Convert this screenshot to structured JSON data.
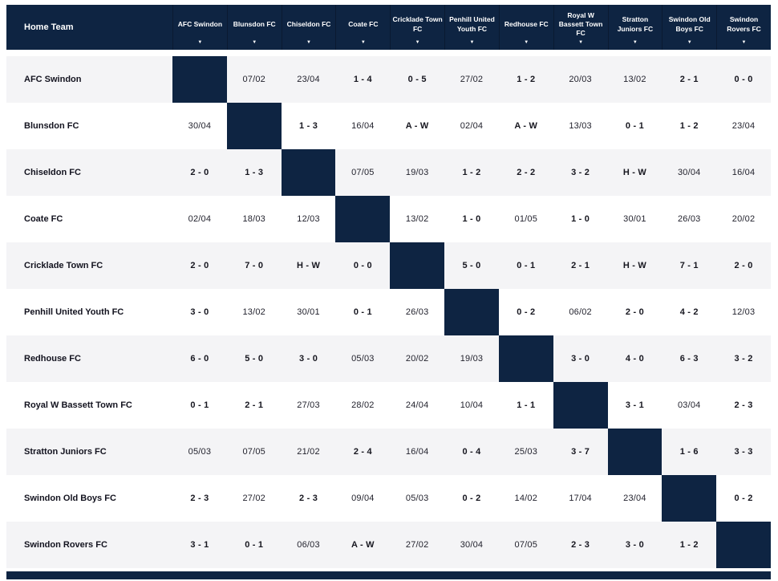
{
  "colors": {
    "navy": "#0e2442",
    "row_alt": "#f4f4f6",
    "row_white": "#ffffff"
  },
  "header": {
    "home_team_label": "Home Team",
    "filter_arrow_icon": "▼",
    "columns": [
      "AFC Swindon",
      "Blunsdon FC",
      "Chiseldon FC",
      "Coate FC",
      "Cricklade Town FC",
      "Penhill United Youth FC",
      "Redhouse FC",
      "Royal W Bassett Town FC",
      "Stratton Juniors FC",
      "Swindon Old Boys FC",
      "Swindon Rovers FC"
    ]
  },
  "rows": [
    {
      "team": "AFC Swindon",
      "cells": [
        "",
        "07/02",
        "23/04",
        "1 - 4",
        "0 - 5",
        "27/02",
        "1 - 2",
        "20/03",
        "13/02",
        "2 - 1",
        "0 - 0"
      ]
    },
    {
      "team": "Blunsdon FC",
      "cells": [
        "30/04",
        "",
        "1 - 3",
        "16/04",
        "A - W",
        "02/04",
        "A - W",
        "13/03",
        "0 - 1",
        "1 - 2",
        "23/04"
      ]
    },
    {
      "team": "Chiseldon FC",
      "cells": [
        "2 - 0",
        "1 - 3",
        "",
        "07/05",
        "19/03",
        "1 - 2",
        "2 - 2",
        "3 - 2",
        "H - W",
        "30/04",
        "16/04"
      ]
    },
    {
      "team": "Coate FC",
      "cells": [
        "02/04",
        "18/03",
        "12/03",
        "",
        "13/02",
        "1 - 0",
        "01/05",
        "1 - 0",
        "30/01",
        "26/03",
        "20/02"
      ]
    },
    {
      "team": "Cricklade Town FC",
      "cells": [
        "2 - 0",
        "7 - 0",
        "H - W",
        "0 - 0",
        "",
        "5 - 0",
        "0 - 1",
        "2 - 1",
        "H - W",
        "7 - 1",
        "2 - 0"
      ]
    },
    {
      "team": "Penhill United Youth FC",
      "cells": [
        "3 - 0",
        "13/02",
        "30/01",
        "0 - 1",
        "26/03",
        "",
        "0 - 2",
        "06/02",
        "2 - 0",
        "4 - 2",
        "12/03"
      ]
    },
    {
      "team": "Redhouse FC",
      "cells": [
        "6 - 0",
        "5 - 0",
        "3 - 0",
        "05/03",
        "20/02",
        "19/03",
        "",
        "3 - 0",
        "4 - 0",
        "6 - 3",
        "3 - 2"
      ]
    },
    {
      "team": "Royal W Bassett Town FC",
      "cells": [
        "0 - 1",
        "2 - 1",
        "27/03",
        "28/02",
        "24/04",
        "10/04",
        "1 - 1",
        "",
        "3 - 1",
        "03/04",
        "2 - 3"
      ]
    },
    {
      "team": "Stratton Juniors FC",
      "cells": [
        "05/03",
        "07/05",
        "21/02",
        "2 - 4",
        "16/04",
        "0 - 4",
        "25/03",
        "3 - 7",
        "",
        "1 - 6",
        "3 - 3"
      ]
    },
    {
      "team": "Swindon Old Boys FC",
      "cells": [
        "2 - 3",
        "27/02",
        "2 - 3",
        "09/04",
        "05/03",
        "0 - 2",
        "14/02",
        "17/04",
        "23/04",
        "",
        "0 - 2"
      ]
    },
    {
      "team": "Swindon Rovers FC",
      "cells": [
        "3 - 1",
        "0 - 1",
        "06/03",
        "A - W",
        "27/02",
        "30/04",
        "07/05",
        "2 - 3",
        "3 - 0",
        "1 - 2",
        ""
      ]
    }
  ]
}
